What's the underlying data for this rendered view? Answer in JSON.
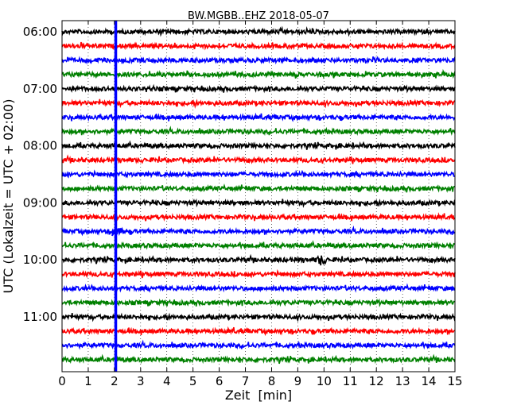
{
  "chart_data": {
    "type": "line",
    "title": "BW.MGBB..EHZ 2018-05-07",
    "xlabel": "Zeit  [min]",
    "ylabel": "UTC (Lokalzeit = UTC + 02:00)",
    "xlim": [
      0,
      15
    ],
    "x_ticks": [
      "0",
      "1",
      "2",
      "3",
      "4",
      "5",
      "6",
      "7",
      "8",
      "9",
      "10",
      "11",
      "12",
      "13",
      "14",
      "15"
    ],
    "y_tick_labels": [
      {
        "row": 0,
        "label": "06:00"
      },
      {
        "row": 4,
        "label": "07:00"
      },
      {
        "row": 8,
        "label": "08:00"
      },
      {
        "row": 12,
        "label": "09:00"
      },
      {
        "row": 16,
        "label": "10:00"
      },
      {
        "row": 20,
        "label": "11:00"
      }
    ],
    "grid": "vertical dotted at each minute",
    "trace_colors": [
      "#000000",
      "#ff0000",
      "#0000ff",
      "#008000"
    ],
    "trace_rows": 24,
    "minutes_per_row": 15,
    "events": [
      {
        "minute": 2.05,
        "note": "high-amplitude transient across all rows",
        "color": "#0000ff"
      },
      {
        "minute": 2.1,
        "row": 14,
        "note": "local event"
      },
      {
        "minute": 9.9,
        "row": 16,
        "note": "local event"
      }
    ]
  }
}
